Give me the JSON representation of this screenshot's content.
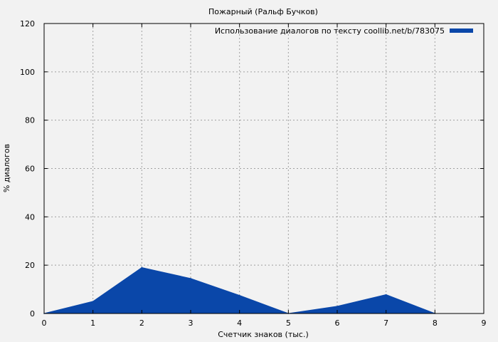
{
  "chart_data": {
    "type": "area",
    "title": "Пожарный (Ральф Бучков)",
    "xlabel": "Счетчик знаков (тыс.)",
    "ylabel": "% диалогов",
    "xlim": [
      0,
      9
    ],
    "ylim": [
      0,
      120
    ],
    "xticks": [
      0,
      1,
      2,
      3,
      4,
      5,
      6,
      7,
      8,
      9
    ],
    "yticks": [
      0,
      20,
      40,
      60,
      80,
      100,
      120
    ],
    "grid": true,
    "legend_position": "top-right",
    "series": [
      {
        "name": "Использование диалогов по тексту coollib.net/b/783075",
        "color": "#0a47a9",
        "x": [
          0,
          1,
          2,
          3,
          4,
          5,
          6,
          7,
          8
        ],
        "y": [
          0,
          5,
          19,
          14.5,
          7.5,
          0,
          3,
          7.8,
          0
        ]
      }
    ]
  }
}
